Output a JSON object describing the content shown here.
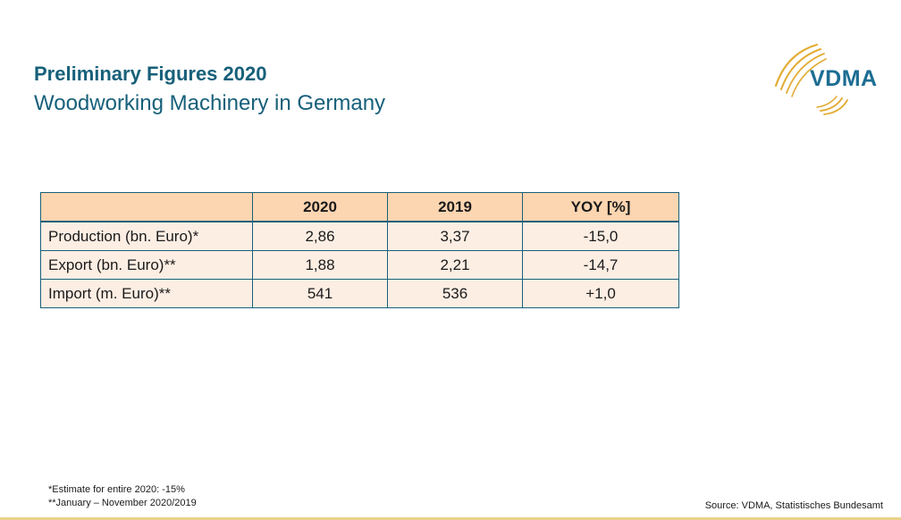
{
  "header": {
    "title": "Preliminary Figures 2020",
    "subtitle": "Woodworking Machinery in Germany"
  },
  "logo": {
    "text": "VDMA",
    "colors": {
      "text": "#1c6d92",
      "swoosh": "#e2ad35"
    }
  },
  "table": {
    "columns": [
      "",
      "2020",
      "2019",
      "YOY [%]"
    ],
    "rows": [
      {
        "label": "Production (bn. Euro)*",
        "v2020": "2,86",
        "v2019": "3,37",
        "yoy": "-15,0"
      },
      {
        "label": "Export (bn. Euro)**",
        "v2020": "1,88",
        "v2019": "2,21",
        "yoy": "-14,7"
      },
      {
        "label": "Import (m. Euro)**",
        "v2020": "541",
        "v2019": "536",
        "yoy": "+1,0"
      }
    ],
    "colors": {
      "header_bg": "#fcd5b1",
      "row_bg": "#fdeee4",
      "border": "#17607a"
    }
  },
  "footnotes": [
    "*Estimate for entire 2020: -15%",
    "**January – November 2020/2019"
  ],
  "source": "Source: VDMA, Statistisches Bundesamt",
  "colors": {
    "accent": "#17607a",
    "bottom_rule": "#e9d18a"
  }
}
